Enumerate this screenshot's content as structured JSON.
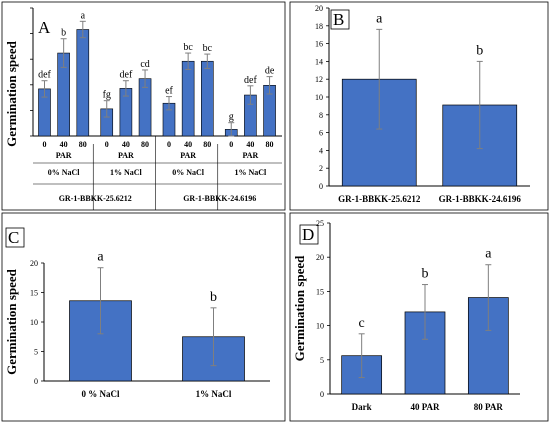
{
  "chart_data": [
    {
      "panel": "A",
      "type": "bar",
      "ylabel": "Germination speed",
      "ylim": [
        0,
        25
      ],
      "ticks": [
        0,
        5,
        10,
        15,
        20,
        25
      ],
      "show_y_ticklabels": false,
      "groups": [
        {
          "genotype": "GR-1-BBKK-25.6212",
          "salinity": "0% NaCl",
          "x_title": "PAR",
          "categories": [
            "0",
            "40",
            "80"
          ],
          "values": [
            9.2,
            16.2,
            20.8
          ],
          "errors": [
            1.6,
            2.8,
            1.6
          ],
          "letters": [
            "def",
            "b",
            "a"
          ]
        },
        {
          "genotype": "GR-1-BBKK-25.6212",
          "salinity": "1% NaCl",
          "x_title": "PAR",
          "categories": [
            "0",
            "40",
            "80"
          ],
          "values": [
            5.3,
            9.3,
            11.2
          ],
          "errors": [
            1.6,
            1.5,
            1.7
          ],
          "letters": [
            "fg",
            "def",
            "cd"
          ]
        },
        {
          "genotype": "GR-1-BBKK-24.6196",
          "salinity": "0% NaCl",
          "x_title": "PAR",
          "categories": [
            "0",
            "40",
            "80"
          ],
          "values": [
            6.4,
            14.6,
            14.6
          ],
          "errors": [
            1.3,
            1.6,
            1.4
          ],
          "letters": [
            "ef",
            "bc",
            "bc"
          ]
        },
        {
          "genotype": "GR-1-BBKK-24.6196",
          "salinity": "1% NaCl",
          "x_title": "PAR",
          "categories": [
            "0",
            "40",
            "80"
          ],
          "values": [
            1.3,
            8.0,
            9.9
          ],
          "errors": [
            1.3,
            1.8,
            1.7
          ],
          "letters": [
            "g",
            "def",
            "de"
          ]
        }
      ],
      "genotypes": [
        "GR-1-BBKK-25.6212",
        "GR-1-BBKK-24.6196"
      ]
    },
    {
      "panel": "B",
      "type": "bar",
      "categories": [
        "GR-1-BBKK-25.6212",
        "GR-1-BBKK-24.6196"
      ],
      "values": [
        12.0,
        9.1
      ],
      "errors": [
        5.6,
        4.9
      ],
      "letters": [
        "a",
        "b"
      ],
      "ylim": [
        0,
        20
      ],
      "ticks": [
        0,
        2,
        4,
        6,
        8,
        10,
        12,
        14,
        16,
        18,
        20
      ]
    },
    {
      "panel": "C",
      "type": "bar",
      "ylabel": "Germination speed",
      "categories": [
        "0 % NaCl",
        "1% NaCl"
      ],
      "values": [
        13.6,
        7.5
      ],
      "errors": [
        5.6,
        4.9
      ],
      "letters": [
        "a",
        "b"
      ],
      "ylim": [
        0,
        20
      ],
      "ticks": [
        0,
        5,
        10,
        15,
        20
      ]
    },
    {
      "panel": "D",
      "type": "bar",
      "ylabel": "Germination speed",
      "categories": [
        "Dark",
        "40 PAR",
        "80 PAR"
      ],
      "values": [
        5.6,
        12.0,
        14.1
      ],
      "errors": [
        3.2,
        4.0,
        4.8
      ],
      "letters": [
        "c",
        "b",
        "a"
      ],
      "ylim": [
        0,
        25
      ],
      "ticks": [
        0,
        5,
        10,
        15,
        20,
        25
      ]
    }
  ],
  "colors": {
    "bar": "#4472c4",
    "bar_edge": "#000000",
    "error": "#7f7f7f",
    "axis": "#000000",
    "frame": "#000000"
  }
}
